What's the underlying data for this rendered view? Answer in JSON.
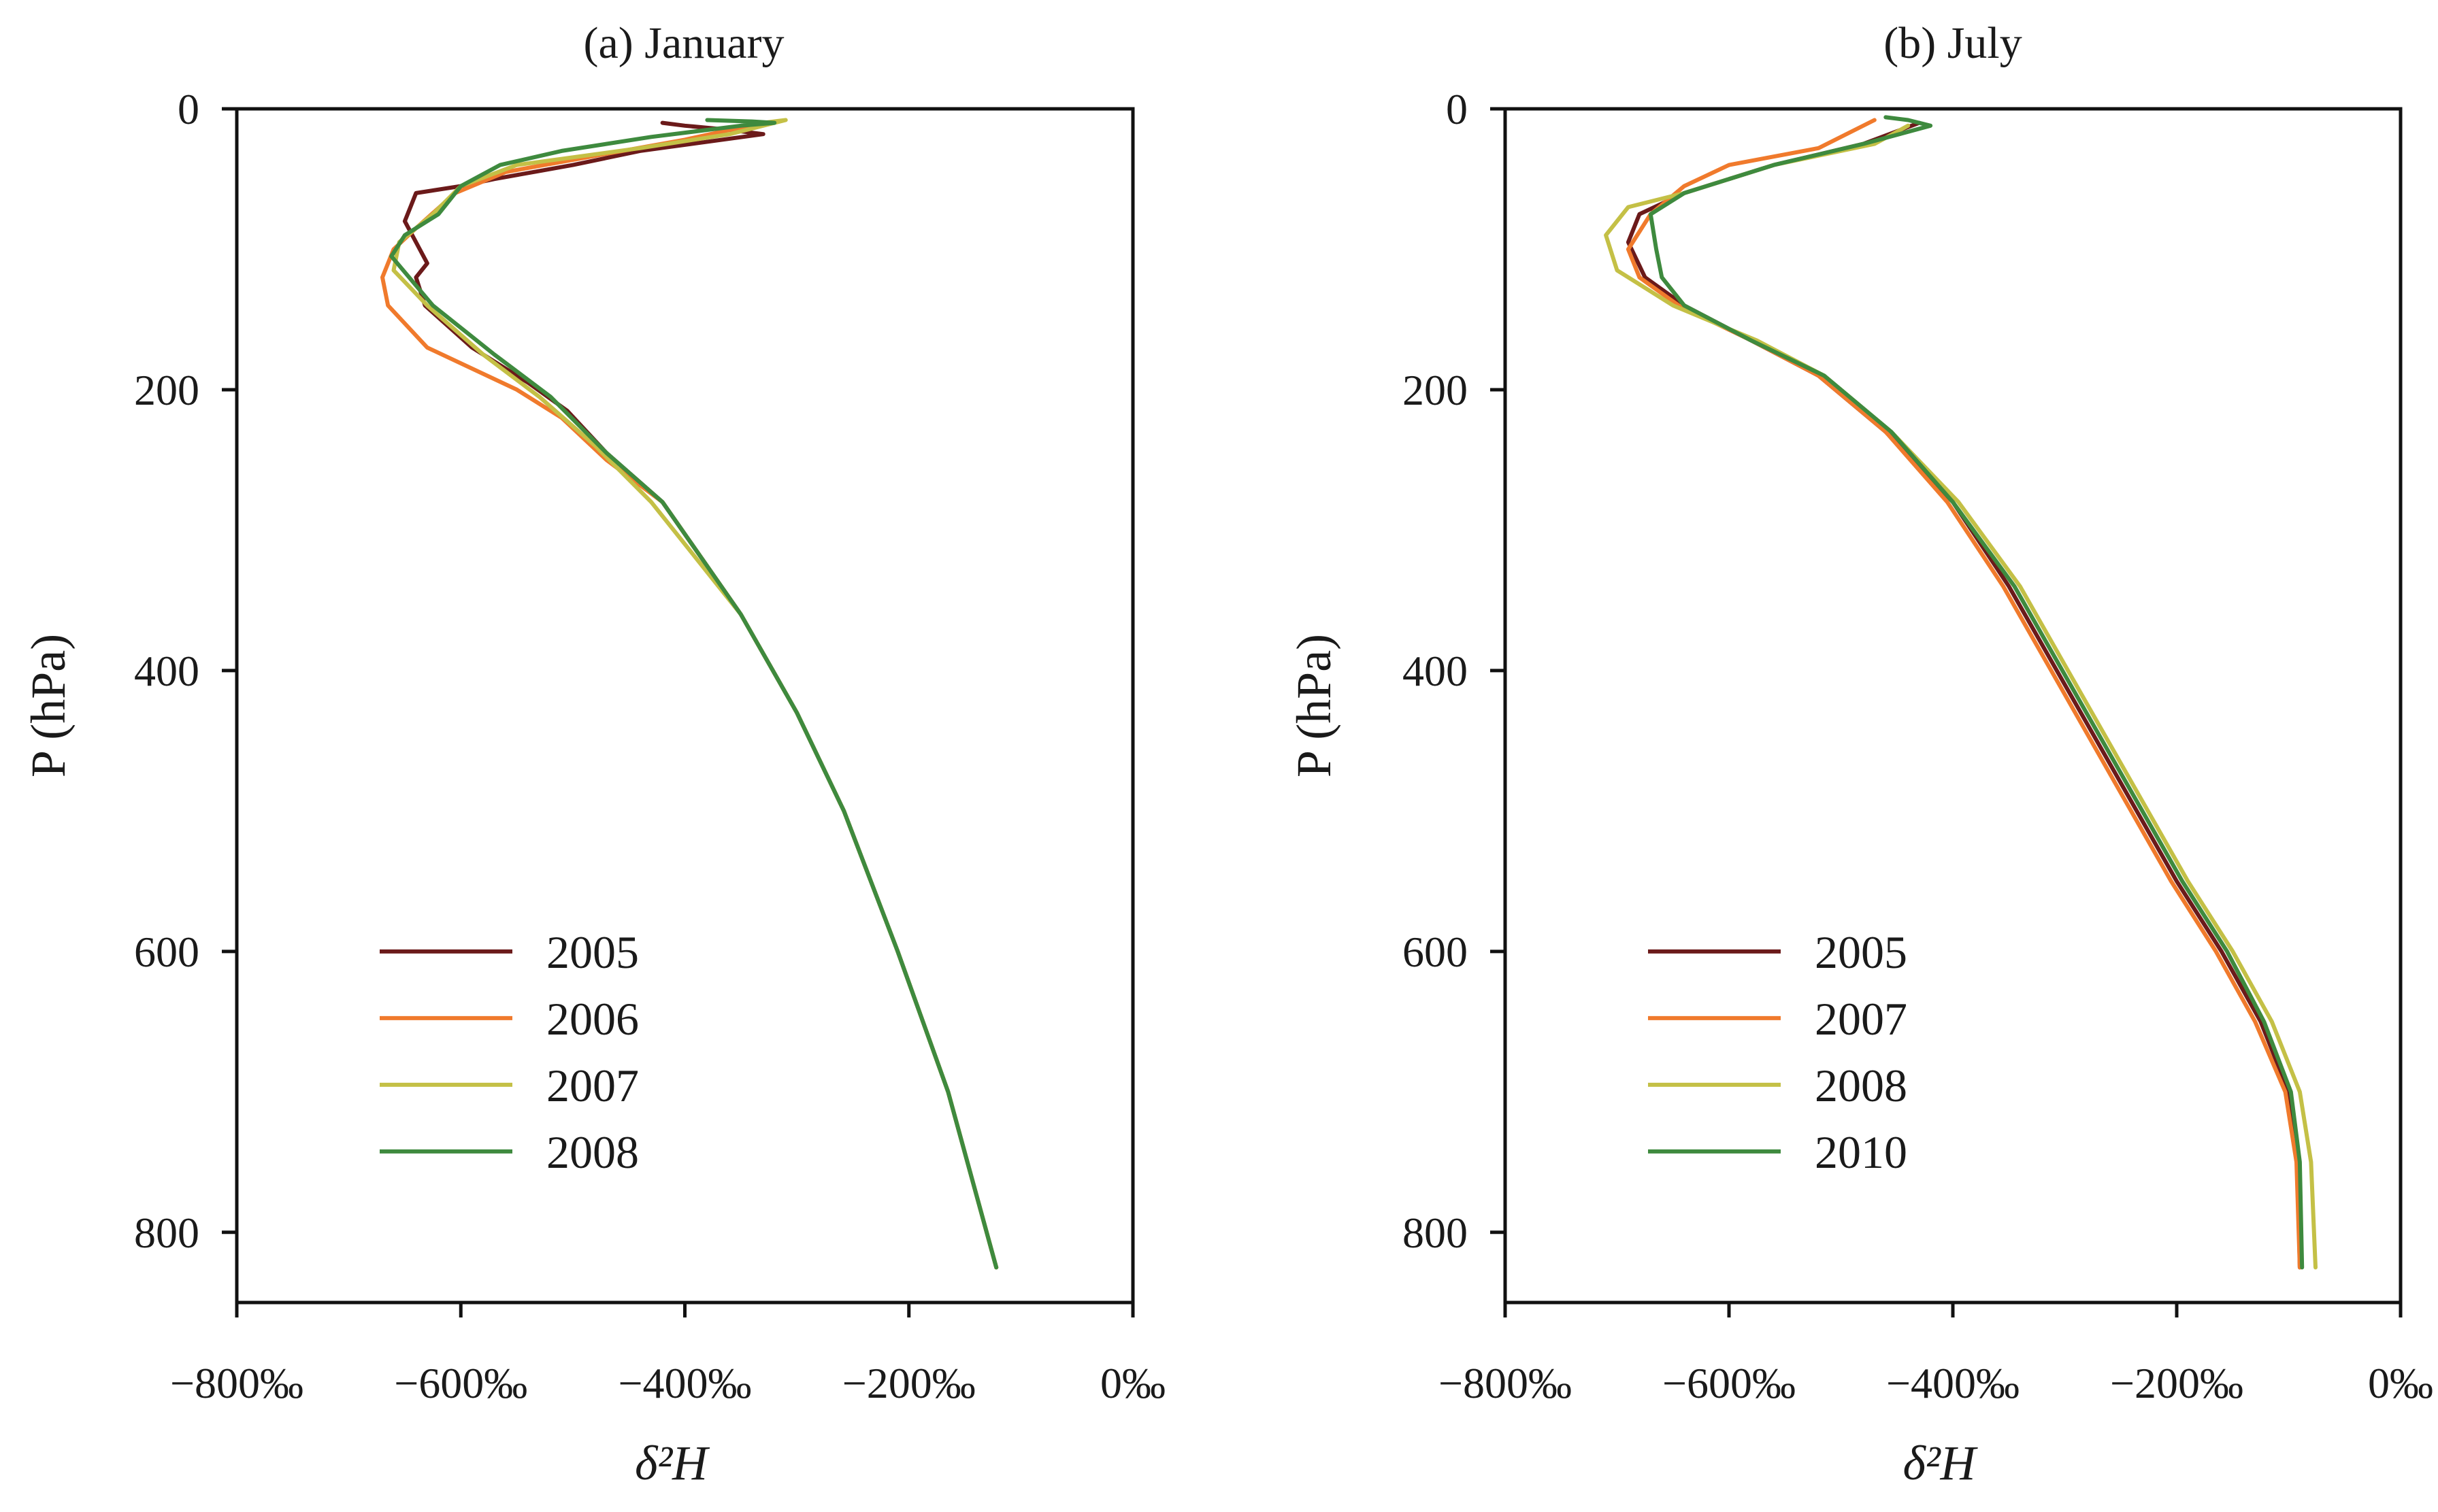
{
  "chart_data": [
    {
      "type": "line",
      "title": "(a) January",
      "xlabel": "δ²H",
      "ylabel": "P (hPa)",
      "xlim": [
        -800,
        0
      ],
      "ylim": [
        850,
        0
      ],
      "y_inverted": true,
      "xticks": [
        -800,
        -600,
        -400,
        -200,
        0
      ],
      "xtick_labels": [
        "−800‰",
        "−600‰",
        "−400‰",
        "−200‰",
        "0‰"
      ],
      "yticks": [
        0,
        200,
        400,
        600,
        800
      ],
      "ytick_labels": [
        "0",
        "200",
        "400",
        "600",
        "800"
      ],
      "grid": false,
      "legend_position": "lower-left",
      "series": [
        {
          "name": "2005",
          "color": "#6b1a1a",
          "x": [
            -122,
            -165,
            -210,
            -258,
            -300,
            -350,
            -385,
            -420,
            -470,
            -505,
            -540,
            -590,
            -632,
            -640,
            -630,
            -640,
            -650,
            -645,
            -640,
            -600,
            -570,
            -500,
            -440,
            -330,
            -360,
            -400,
            -420
          ],
          "y": [
            825,
            700,
            600,
            500,
            430,
            360,
            320,
            280,
            245,
            215,
            195,
            170,
            140,
            120,
            110,
            95,
            80,
            70,
            60,
            55,
            50,
            40,
            30,
            18,
            15,
            12,
            10
          ]
        },
        {
          "name": "2006",
          "color": "#f07a2c",
          "x": [
            -122,
            -165,
            -210,
            -258,
            -300,
            -350,
            -385,
            -420,
            -470,
            -510,
            -550,
            -630,
            -665,
            -670,
            -660,
            -640,
            -605,
            -560,
            -470,
            -400,
            -360,
            -330
          ],
          "y": [
            825,
            700,
            600,
            500,
            430,
            360,
            320,
            280,
            250,
            220,
            200,
            170,
            140,
            120,
            100,
            85,
            60,
            45,
            32,
            22,
            15,
            10
          ]
        },
        {
          "name": "2007",
          "color": "#c4c046",
          "x": [
            -122,
            -165,
            -210,
            -258,
            -300,
            -350,
            -390,
            -430,
            -480,
            -530,
            -580,
            -630,
            -660,
            -655,
            -625,
            -600,
            -550,
            -440,
            -360,
            -310,
            -330
          ],
          "y": [
            825,
            700,
            600,
            500,
            430,
            360,
            320,
            280,
            240,
            205,
            175,
            140,
            115,
            95,
            75,
            55,
            40,
            28,
            18,
            8,
            10
          ]
        },
        {
          "name": "2008",
          "color": "#3e8a3e",
          "x": [
            -122,
            -165,
            -210,
            -258,
            -300,
            -350,
            -385,
            -420,
            -470,
            -520,
            -570,
            -625,
            -662,
            -650,
            -620,
            -600,
            -565,
            -510,
            -430,
            -350,
            -320,
            -340,
            -380
          ],
          "y": [
            825,
            700,
            600,
            500,
            430,
            360,
            320,
            280,
            245,
            205,
            175,
            140,
            105,
            90,
            75,
            55,
            40,
            30,
            20,
            12,
            10,
            9,
            8
          ]
        }
      ]
    },
    {
      "type": "line",
      "title": "(b) July",
      "xlabel": "δ²H",
      "ylabel": "P (hPa)",
      "xlim": [
        -800,
        0
      ],
      "ylim": [
        850,
        0
      ],
      "y_inverted": true,
      "xticks": [
        -800,
        -600,
        -400,
        -200,
        0
      ],
      "xtick_labels": [
        "−800‰",
        "−600‰",
        "−400‰",
        "−200‰",
        "0‰"
      ],
      "yticks": [
        0,
        200,
        400,
        600,
        800
      ],
      "ytick_labels": [
        "0",
        "200",
        "400",
        "600",
        "800"
      ],
      "grid": false,
      "legend_position": "lower-left",
      "series": [
        {
          "name": "2005",
          "color": "#6b1a1a",
          "x": [
            -90,
            -92,
            -100,
            -125,
            -160,
            -200,
            -250,
            -300,
            -350,
            -400,
            -460,
            -520,
            -580,
            -640,
            -675,
            -690,
            -680,
            -640,
            -560,
            -480,
            -430
          ],
          "y": [
            825,
            750,
            700,
            650,
            600,
            550,
            480,
            410,
            340,
            280,
            230,
            190,
            165,
            140,
            120,
            95,
            75,
            60,
            40,
            25,
            10
          ]
        },
        {
          "name": "2007",
          "color": "#f07a2c",
          "x": [
            -90,
            -93,
            -103,
            -130,
            -165,
            -205,
            -255,
            -305,
            -355,
            -405,
            -460,
            -520,
            -580,
            -645,
            -680,
            -690,
            -670,
            -640,
            -600,
            -520,
            -470
          ],
          "y": [
            825,
            750,
            700,
            650,
            600,
            550,
            480,
            410,
            340,
            280,
            230,
            190,
            165,
            140,
            120,
            100,
            75,
            55,
            40,
            28,
            8
          ]
        },
        {
          "name": "2008",
          "color": "#c4c046",
          "x": [
            -76,
            -80,
            -90,
            -115,
            -150,
            -190,
            -240,
            -290,
            -340,
            -395,
            -455,
            -515,
            -575,
            -650,
            -700,
            -710,
            -690,
            -640,
            -560,
            -470,
            -440
          ],
          "y": [
            825,
            750,
            700,
            650,
            600,
            550,
            480,
            410,
            340,
            280,
            230,
            190,
            165,
            140,
            115,
            90,
            70,
            60,
            40,
            25,
            12
          ]
        },
        {
          "name": "2010",
          "color": "#3e8a3e",
          "x": [
            -88,
            -90,
            -98,
            -122,
            -155,
            -195,
            -245,
            -295,
            -345,
            -400,
            -455,
            -515,
            -580,
            -640,
            -660,
            -665,
            -670,
            -640,
            -560,
            -480,
            -420,
            -440,
            -460
          ],
          "y": [
            825,
            750,
            700,
            650,
            600,
            550,
            480,
            410,
            340,
            280,
            230,
            190,
            165,
            140,
            120,
            100,
            75,
            60,
            40,
            25,
            12,
            8,
            6
          ]
        }
      ]
    }
  ]
}
